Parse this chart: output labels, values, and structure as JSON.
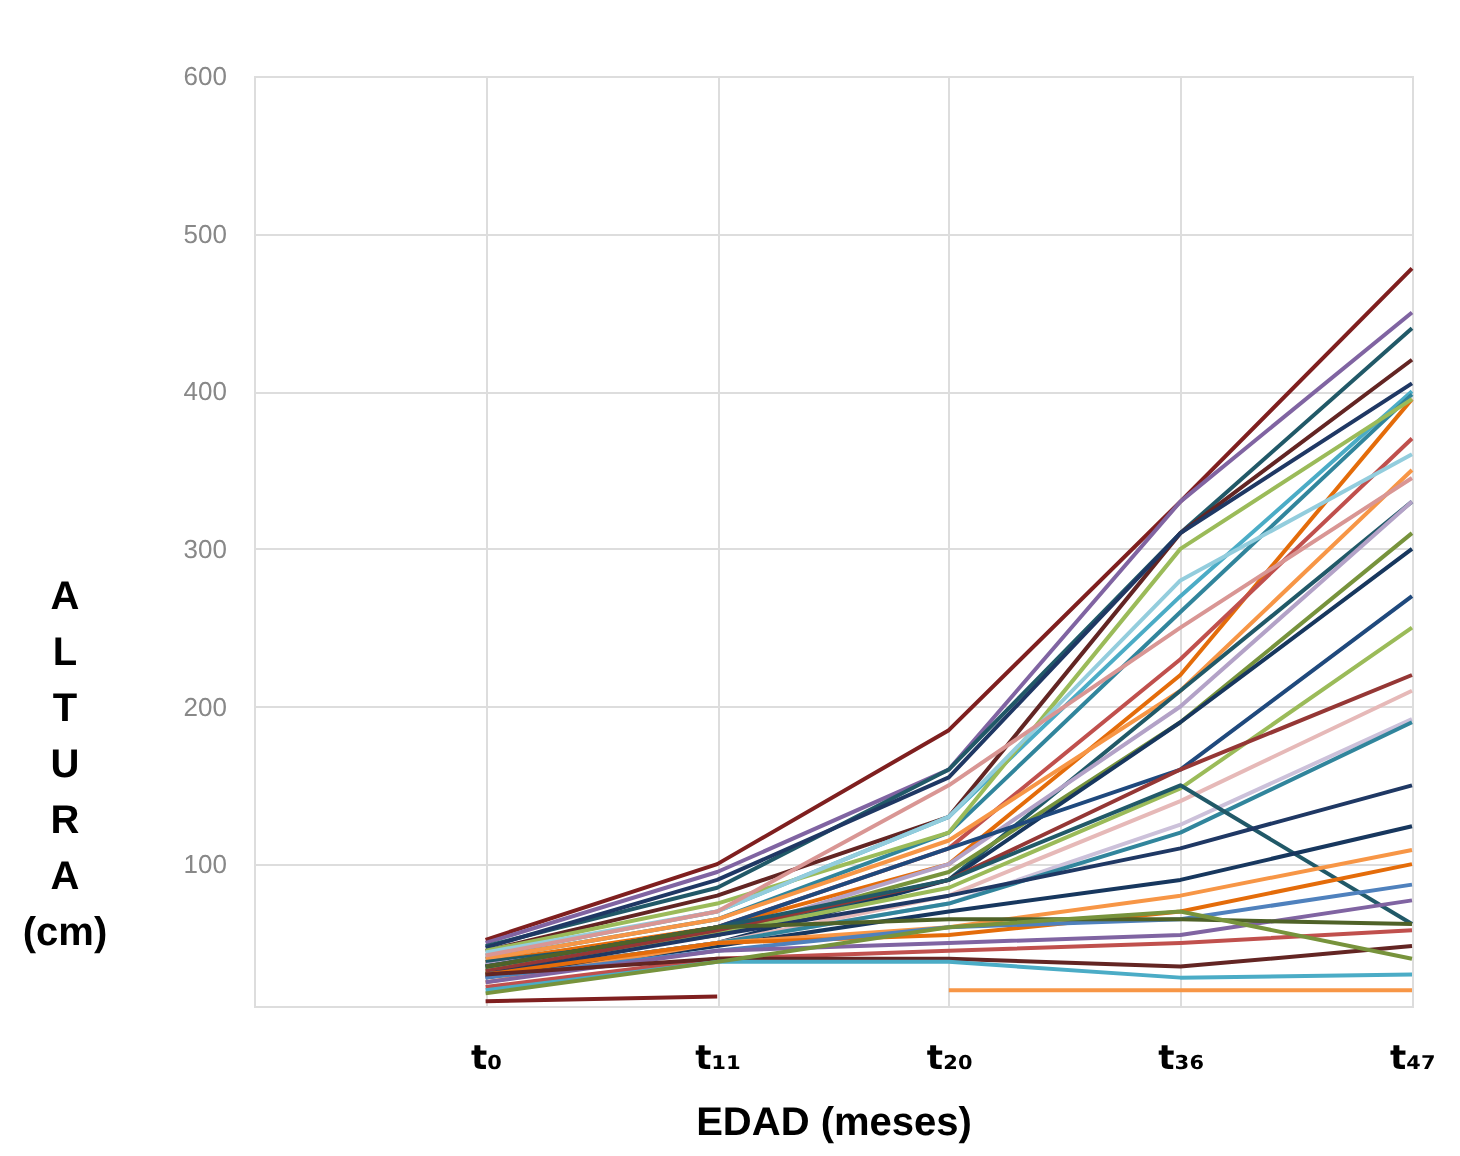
{
  "chart_data": {
    "type": "line",
    "xlabel": "EDAD (meses)",
    "ylabel": "ALTURA (cm)",
    "categories": [
      null,
      "t₀",
      "t₁₁",
      "t₂₀",
      "t₃₆",
      "t₄₇"
    ],
    "ylim": [
      10,
      600
    ],
    "yticks": [
      100,
      200,
      300,
      400,
      500,
      600
    ],
    "grid": true,
    "series": [
      {
        "color": "#7f1f1f",
        "values": [
          null,
          52,
          100,
          185,
          330,
          478
        ]
      },
      {
        "color": "#8064a2",
        "values": [
          null,
          50,
          95,
          160,
          330,
          450
        ]
      },
      {
        "color": "#215968",
        "values": [
          null,
          48,
          85,
          160,
          310,
          440
        ]
      },
      {
        "color": "#632523",
        "values": [
          null,
          45,
          80,
          130,
          310,
          420
        ]
      },
      {
        "color": "#1f3864",
        "values": [
          null,
          47,
          90,
          155,
          310,
          405
        ]
      },
      {
        "color": "#4bacc6",
        "values": [
          null,
          42,
          70,
          130,
          270,
          400
        ]
      },
      {
        "color": "#31859c",
        "values": [
          null,
          40,
          65,
          120,
          260,
          398
        ]
      },
      {
        "color": "#e46c0a",
        "values": [
          null,
          38,
          60,
          100,
          220,
          395
        ]
      },
      {
        "color": "#9bbb59",
        "values": [
          null,
          45,
          75,
          120,
          300,
          395
        ]
      },
      {
        "color": "#c0504d",
        "values": [
          null,
          35,
          60,
          110,
          230,
          370
        ]
      },
      {
        "color": "#f79646",
        "values": [
          null,
          40,
          65,
          115,
          210,
          350
        ]
      },
      {
        "color": "#93cddd",
        "values": [
          null,
          44,
          70,
          130,
          280,
          360
        ]
      },
      {
        "color": "#d99694",
        "values": [
          null,
          42,
          70,
          150,
          250,
          345
        ]
      },
      {
        "color": "#215968",
        "values": [
          null,
          38,
          55,
          90,
          210,
          330
        ]
      },
      {
        "color": "#b3a2c7",
        "values": [
          null,
          36,
          55,
          100,
          200,
          330
        ]
      },
      {
        "color": "#77933c",
        "values": [
          null,
          33,
          55,
          95,
          190,
          310
        ]
      },
      {
        "color": "#17375e",
        "values": [
          null,
          30,
          50,
          90,
          190,
          300
        ]
      },
      {
        "color": "#1f497d",
        "values": [
          null,
          35,
          60,
          110,
          160,
          270
        ]
      },
      {
        "color": "#9bbb59",
        "values": [
          null,
          31,
          56,
          85,
          148,
          250
        ]
      },
      {
        "color": "#953735",
        "values": [
          null,
          32,
          58,
          90,
          160,
          220
        ]
      },
      {
        "color": "#e6b9b8",
        "values": [
          null,
          30,
          50,
          80,
          140,
          210
        ]
      },
      {
        "color": "#ccc1da",
        "values": [
          null,
          28,
          50,
          75,
          125,
          192
        ]
      },
      {
        "color": "#31859c",
        "values": [
          null,
          30,
          50,
          75,
          120,
          190
        ]
      },
      {
        "color": "#215968",
        "values": [
          null,
          35,
          60,
          90,
          150,
          62
        ]
      },
      {
        "color": "#1f3864",
        "values": [
          null,
          30,
          55,
          80,
          110,
          150
        ]
      },
      {
        "color": "#17375e",
        "values": [
          null,
          28,
          48,
          70,
          90,
          124
        ]
      },
      {
        "color": "#f79646",
        "values": [
          null,
          25,
          50,
          60,
          80,
          109
        ]
      },
      {
        "color": "#e46c0a",
        "values": [
          null,
          30,
          50,
          55,
          70,
          100
        ]
      },
      {
        "color": "#4f81bd",
        "values": [
          null,
          28,
          45,
          60,
          65,
          87
        ]
      },
      {
        "color": "#8064a2",
        "values": [
          null,
          25,
          45,
          50,
          55,
          77
        ]
      },
      {
        "color": "#4f6228",
        "values": [
          null,
          35,
          60,
          65,
          65,
          62
        ]
      },
      {
        "color": "#c0504d",
        "values": [
          null,
          22,
          40,
          45,
          50,
          58
        ]
      },
      {
        "color": "#632523",
        "values": [
          null,
          30,
          40,
          40,
          35,
          48
        ]
      },
      {
        "color": "#4bacc6",
        "values": [
          null,
          20,
          38,
          38,
          28,
          30
        ]
      },
      {
        "color": "#77933c",
        "values": [
          null,
          18,
          38,
          60,
          70,
          40
        ]
      },
      {
        "color": "#f79646",
        "values": [
          null,
          null,
          null,
          20,
          20,
          20
        ]
      },
      {
        "color": "#7f1f1f",
        "values": [
          null,
          13,
          16,
          null,
          null,
          null
        ]
      }
    ]
  }
}
